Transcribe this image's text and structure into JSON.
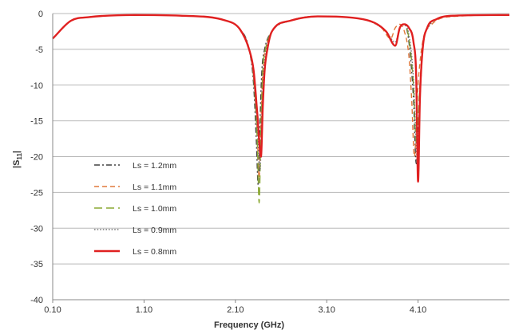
{
  "chart_data": {
    "type": "line",
    "title": "",
    "xlabel": "Frequency (GHz)",
    "ylabel": "|S11|",
    "ylabel_main": "|S",
    "ylabel_sub": "11",
    "ylabel_end": "|",
    "xlim": [
      0.1,
      5.1
    ],
    "ylim": [
      -40,
      0
    ],
    "x_ticks": [
      0.1,
      1.1,
      2.1,
      3.1,
      4.1
    ],
    "x_tick_labels": [
      "0.10",
      "1.10",
      "2.10",
      "3.10",
      "4.10"
    ],
    "y_ticks": [
      0,
      -5,
      -10,
      -15,
      -20,
      -25,
      -30,
      -35,
      -40
    ],
    "y_tick_labels": [
      "0",
      "-5",
      "-10",
      "-15",
      "-20",
      "-25",
      "-30",
      "-35",
      "-40"
    ],
    "grid": true,
    "legend_position": "left-center",
    "series": [
      {
        "name": "Ls = 1.2mm",
        "color": "#404040",
        "dash": "dashdot",
        "x": [
          0.1,
          0.3,
          0.5,
          1.0,
          1.5,
          2.0,
          2.15,
          2.25,
          2.3,
          2.33,
          2.35,
          2.37,
          2.39,
          2.42,
          2.5,
          2.7,
          3.0,
          3.5,
          3.75,
          3.85,
          3.9,
          3.95,
          4.0,
          4.05,
          4.08,
          4.12,
          4.15,
          4.2,
          4.3,
          4.5,
          5.1
        ],
        "y": [
          -3.5,
          -1.0,
          -0.5,
          -0.2,
          -0.3,
          -1.0,
          -2.2,
          -5.0,
          -10.0,
          -18.0,
          -24.0,
          -15.0,
          -8.0,
          -5.0,
          -2.5,
          -1.0,
          -0.4,
          -0.8,
          -2.5,
          -4.5,
          -2.0,
          -1.5,
          -4.0,
          -12.0,
          -21.0,
          -12.0,
          -5.0,
          -2.0,
          -0.8,
          -0.3,
          -0.2
        ]
      },
      {
        "name": "Ls = 1.1mm",
        "color": "#e0783a",
        "dash": "dash",
        "x": [
          0.1,
          0.3,
          0.5,
          1.0,
          1.5,
          2.0,
          2.15,
          2.25,
          2.3,
          2.34,
          2.36,
          2.38,
          2.4,
          2.43,
          2.5,
          2.7,
          3.0,
          3.5,
          3.7,
          3.8,
          3.85,
          3.9,
          3.95,
          4.0,
          4.03,
          4.06,
          4.1,
          4.15,
          4.25,
          4.5,
          5.1
        ],
        "y": [
          -3.5,
          -1.0,
          -0.5,
          -0.2,
          -0.3,
          -1.0,
          -2.2,
          -5.0,
          -9.0,
          -17.0,
          -23.0,
          -15.0,
          -8.0,
          -5.0,
          -2.5,
          -1.0,
          -0.4,
          -0.8,
          -2.0,
          -3.5,
          -2.0,
          -1.5,
          -2.5,
          -6.0,
          -12.0,
          -20.0,
          -10.0,
          -4.0,
          -1.5,
          -0.4,
          -0.2
        ]
      },
      {
        "name": "Ls = 1.0mm",
        "color": "#8aa832",
        "dash": "longdash",
        "x": [
          0.1,
          0.3,
          0.5,
          1.0,
          1.5,
          2.0,
          2.15,
          2.25,
          2.3,
          2.34,
          2.36,
          2.38,
          2.4,
          2.43,
          2.5,
          2.7,
          3.0,
          3.5,
          3.75,
          3.85,
          3.9,
          3.95,
          4.0,
          4.05,
          4.08,
          4.12,
          4.15,
          4.2,
          4.3,
          4.5,
          5.1
        ],
        "y": [
          -3.5,
          -1.0,
          -0.5,
          -0.2,
          -0.3,
          -1.0,
          -2.2,
          -5.0,
          -9.0,
          -18.0,
          -26.5,
          -16.0,
          -8.0,
          -5.0,
          -2.5,
          -1.0,
          -0.4,
          -0.8,
          -2.5,
          -4.5,
          -2.0,
          -1.5,
          -3.5,
          -10.0,
          -18.0,
          -10.0,
          -4.5,
          -2.0,
          -0.8,
          -0.3,
          -0.2
        ]
      },
      {
        "name": "Ls = 0.9mm",
        "color": "#777777",
        "dash": "dot",
        "x": [
          0.1,
          0.3,
          0.5,
          1.0,
          1.5,
          2.0,
          2.15,
          2.25,
          2.3,
          2.34,
          2.37,
          2.39,
          2.41,
          2.44,
          2.5,
          2.7,
          3.0,
          3.5,
          3.75,
          3.85,
          3.9,
          3.95,
          4.0,
          4.05,
          4.09,
          4.13,
          4.16,
          4.22,
          4.3,
          4.5,
          5.1
        ],
        "y": [
          -3.5,
          -1.0,
          -0.5,
          -0.2,
          -0.3,
          -1.0,
          -2.2,
          -5.0,
          -9.0,
          -16.0,
          -22.0,
          -14.0,
          -8.0,
          -5.0,
          -2.5,
          -1.0,
          -0.4,
          -0.8,
          -2.5,
          -4.0,
          -2.0,
          -1.5,
          -3.0,
          -9.0,
          -20.0,
          -9.0,
          -4.0,
          -1.8,
          -0.8,
          -0.3,
          -0.2
        ]
      },
      {
        "name": "Ls = 0.8mm",
        "color": "#e02020",
        "dash": "solid",
        "x": [
          0.1,
          0.3,
          0.5,
          1.0,
          1.5,
          2.0,
          2.15,
          2.25,
          2.3,
          2.34,
          2.38,
          2.4,
          2.42,
          2.45,
          2.5,
          2.7,
          3.0,
          3.5,
          3.75,
          3.85,
          3.9,
          3.95,
          4.0,
          4.05,
          4.08,
          4.1,
          4.12,
          4.15,
          4.2,
          4.3,
          4.5,
          5.1
        ],
        "y": [
          -3.5,
          -1.0,
          -0.5,
          -0.2,
          -0.3,
          -1.0,
          -2.2,
          -5.0,
          -8.0,
          -14.0,
          -20.0,
          -13.0,
          -8.0,
          -5.0,
          -2.5,
          -1.0,
          -0.4,
          -0.8,
          -2.5,
          -4.5,
          -2.0,
          -1.5,
          -2.0,
          -4.0,
          -9.0,
          -23.5,
          -12.0,
          -5.0,
          -2.0,
          -0.8,
          -0.3,
          -0.2
        ]
      }
    ]
  }
}
